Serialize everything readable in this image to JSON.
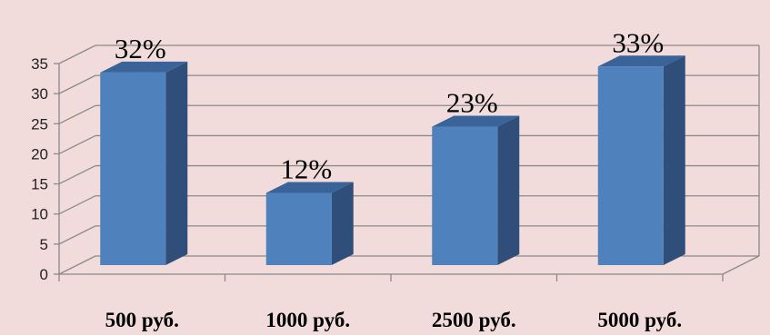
{
  "chart_data": {
    "type": "bar",
    "categories": [
      "500 руб.",
      "1000 руб.",
      "2500 руб.",
      "5000 руб."
    ],
    "values": [
      32,
      12,
      23,
      33
    ],
    "data_labels": [
      "32%",
      "12%",
      "23%",
      "33%"
    ],
    "ylim": [
      0,
      35
    ],
    "yticks": [
      0,
      5,
      10,
      15,
      20,
      25,
      30,
      35
    ],
    "grid": true,
    "style": "3d-column",
    "colors": {
      "bar_front": "#4f81bd",
      "bar_side": "#2f4f7a",
      "bar_top": "#3a639a",
      "grid": "#8a8a8a",
      "background": "#f2dcdb"
    }
  }
}
